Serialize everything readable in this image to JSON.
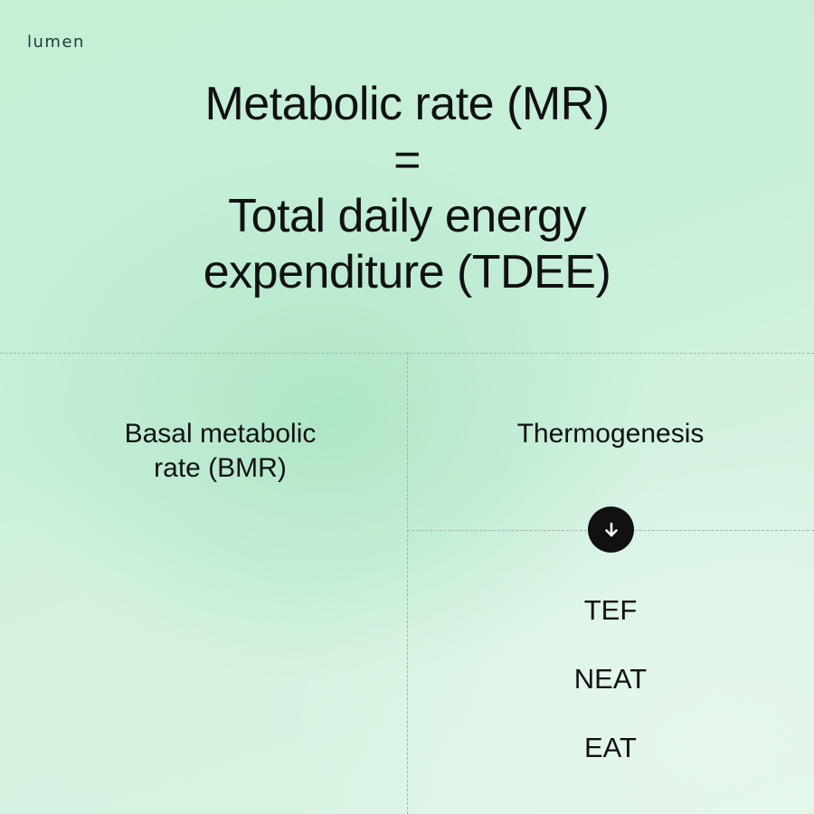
{
  "brand": {
    "logo": "lumen"
  },
  "headline": {
    "line1": "Metabolic rate (MR)",
    "line2": "=",
    "line3": "Total daily energy",
    "line4": "expenditure (TDEE)"
  },
  "columns": {
    "left": {
      "line1": "Basal metabolic",
      "line2": "rate (BMR)"
    },
    "right": {
      "label": "Thermogenesis"
    }
  },
  "arrow": {
    "icon": "arrow-down-icon"
  },
  "components": [
    "TEF",
    "NEAT",
    "EAT"
  ],
  "colors": {
    "background": "#c8efd9",
    "text": "#111111",
    "divider": "#9fb7a9"
  }
}
